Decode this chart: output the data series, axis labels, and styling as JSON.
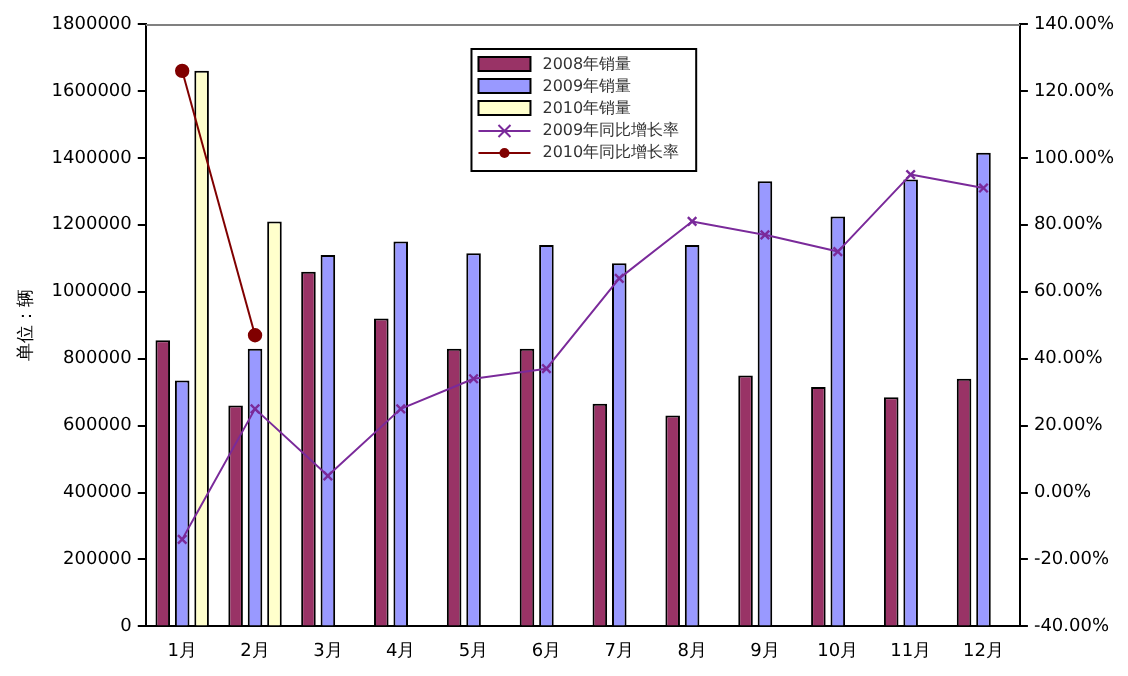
{
  "chart_data": {
    "type": "bar",
    "ylabel": "单位：辆",
    "categories": [
      "1月",
      "2月",
      "3月",
      "4月",
      "5月",
      "6月",
      "7月",
      "8月",
      "9月",
      "10月",
      "11月",
      "12月"
    ],
    "series": [
      {
        "name": "2008年销量",
        "color": "#993366",
        "values": [
          855000,
          660000,
          1060000,
          920000,
          830000,
          830000,
          665000,
          630000,
          750000,
          715000,
          685000,
          740000
        ]
      },
      {
        "name": "2009年销量",
        "color": "#9999ff",
        "values": [
          735000,
          830000,
          1110000,
          1150000,
          1115000,
          1140000,
          1085000,
          1140000,
          1330000,
          1225000,
          1335000,
          1415000
        ]
      },
      {
        "name": "2010年销量",
        "color": "#ffffcc",
        "values": [
          1660000,
          1210000,
          null,
          null,
          null,
          null,
          null,
          null,
          null,
          null,
          null,
          null
        ]
      },
      {
        "name": "2009年同比增长率",
        "type": "line",
        "axis": "y2",
        "color": "#7a2a9a",
        "marker": "cross",
        "values": [
          -14,
          25,
          5,
          25,
          34,
          37,
          64,
          81,
          77,
          72,
          95,
          91
        ]
      },
      {
        "name": "2010年同比增长率",
        "type": "line",
        "axis": "y2",
        "color": "#800000",
        "marker": "circle",
        "values": [
          126,
          47,
          null,
          null,
          null,
          null,
          null,
          null,
          null,
          null,
          null,
          null
        ]
      }
    ],
    "ylim": [
      0,
      1800000
    ],
    "yticks": [
      0,
      200000,
      400000,
      600000,
      800000,
      1000000,
      1200000,
      1400000,
      1600000,
      1800000
    ],
    "y2lim": [
      -40,
      140
    ],
    "y2ticks": [
      {
        "value": -40,
        "label": "-40.00%"
      },
      {
        "value": -20,
        "label": "-20.00%"
      },
      {
        "value": 0,
        "label": "0.00%"
      },
      {
        "value": 20,
        "label": "20.00%"
      },
      {
        "value": 40,
        "label": "40.00%"
      },
      {
        "value": 60,
        "label": "60.00%"
      },
      {
        "value": 80,
        "label": "80.00%"
      },
      {
        "value": 100,
        "label": "100.00%"
      },
      {
        "value": 120,
        "label": "120.00%"
      },
      {
        "value": 140,
        "label": "140.00%"
      }
    ],
    "grid": false,
    "legend": "top"
  }
}
